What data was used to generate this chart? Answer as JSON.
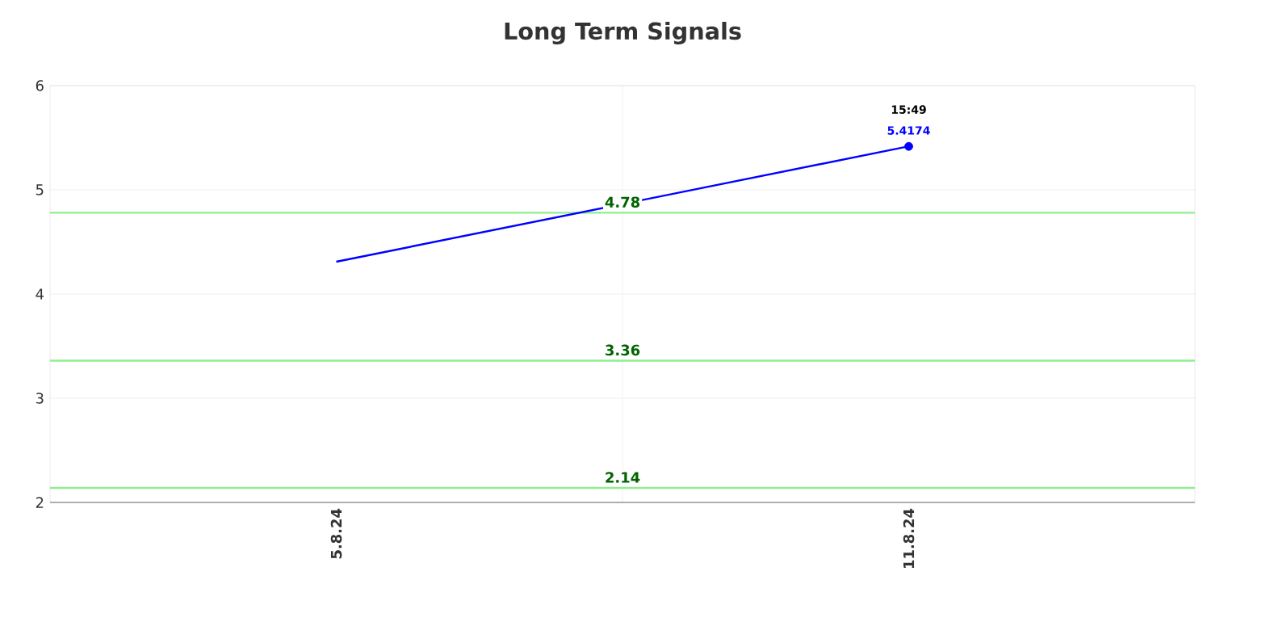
{
  "chart_data": {
    "type": "line",
    "title": "Long Term Signals",
    "categories": [
      "5.8.24",
      "11.8.24"
    ],
    "series": [
      {
        "color": "#0000ff",
        "values": [
          4.31,
          5.4174
        ]
      },
      {
        "type": "scatter",
        "color": "#0000ff",
        "values": [
          null,
          5.4174
        ],
        "marker": "circle"
      }
    ],
    "ylim": [
      2,
      6
    ],
    "yticks": [
      2,
      3,
      4,
      5,
      6
    ],
    "grid": true,
    "ref_lines": [
      {
        "axis": "y",
        "value": 4.78,
        "label": "4.78",
        "color": "#90ee90"
      },
      {
        "axis": "y",
        "value": 3.36,
        "label": "3.36",
        "color": "#90ee90"
      },
      {
        "axis": "y",
        "value": 2.14,
        "label": "2.14",
        "color": "#90ee90"
      }
    ],
    "annotations": [
      {
        "text": "15:49",
        "x": "11.8.24",
        "y": 5.4174
      },
      {
        "text": "5.4174",
        "x": "11.8.24",
        "y": 5.4174
      }
    ]
  }
}
